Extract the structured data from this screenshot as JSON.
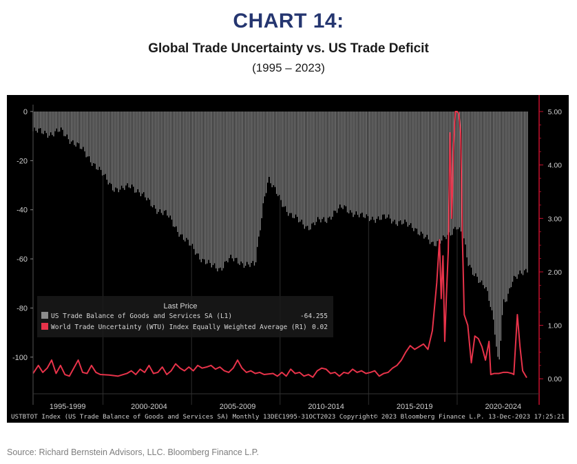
{
  "page": {
    "heading": "CHART 14:",
    "subtitle": "Global Trade Uncertainty vs. US Trade Deficit",
    "period": "(1995 – 2023)",
    "source": "Source: Richard Bernstein Advisors, LLC. Bloomberg Finance L.P."
  },
  "colors": {
    "plot_bg": "#000000",
    "bars": "#8c8c8c",
    "line": "#e8334a",
    "axis_text": "#d0d0d0",
    "right_axis": "#c8102e",
    "grid": "#3a3a3a"
  },
  "chart_data": {
    "type": "bar",
    "footer": "USTBTOT Index (US Trade Balance of Goods and Services SA)  Monthly  13DEC1995-31OCT2023 Copyright© 2023 Bloomberg Finance L.P.  13-Dec-2023  17:25:21",
    "x_range": [
      1995.95,
      2023.83
    ],
    "x_tick_labels": [
      {
        "label": "1995-1999",
        "x": 1997.9
      },
      {
        "label": "2000-2004",
        "x": 2002.5
      },
      {
        "label": "2005-2009",
        "x": 2007.5
      },
      {
        "label": "2010-2014",
        "x": 2012.5
      },
      {
        "label": "2015-2019",
        "x": 2017.5
      },
      {
        "label": "2020-2024",
        "x": 2022.5
      }
    ],
    "x_separators": [
      1999.9,
      2004.9,
      2009.9,
      2014.9,
      2019.9
    ],
    "left_axis": {
      "ticks": [
        0,
        -20,
        -40,
        -60,
        -80,
        -100
      ],
      "range": [
        -111,
        0
      ]
    },
    "right_axis": {
      "ticks": [
        "5.00",
        "4.00",
        "3.00",
        "2.00",
        "1.00",
        "0.00"
      ],
      "range": [
        -0.1,
        5.0
      ]
    },
    "grid": false,
    "legend": {
      "title": "Last Price",
      "position": "bottom-left",
      "entries": [
        {
          "name": "US Trade Balance of Goods and Services SA  (L1)",
          "value": "-64.255",
          "color": "#8c8c8c"
        },
        {
          "name": "World Trade Uncertainty (WTU) Index Equally Weighted Average  (R1)",
          "value": "0.02",
          "color": "#e8334a"
        }
      ]
    },
    "series": [
      {
        "name": "US Trade Balance of Goods and Services SA  (L1)",
        "axis": "left",
        "type": "bar",
        "points": [
          [
            1995.95,
            -8
          ],
          [
            1997.0,
            -9
          ],
          [
            1997.5,
            -8
          ],
          [
            1998.0,
            -11
          ],
          [
            1998.5,
            -14
          ],
          [
            1999.0,
            -18
          ],
          [
            1999.5,
            -22
          ],
          [
            2000.0,
            -27
          ],
          [
            2000.5,
            -31
          ],
          [
            2001.0,
            -32
          ],
          [
            2001.5,
            -30
          ],
          [
            2002.0,
            -33
          ],
          [
            2002.5,
            -37
          ],
          [
            2003.0,
            -40
          ],
          [
            2003.5,
            -42
          ],
          [
            2004.0,
            -47
          ],
          [
            2004.5,
            -52
          ],
          [
            2005.0,
            -56
          ],
          [
            2005.5,
            -60
          ],
          [
            2006.0,
            -63
          ],
          [
            2006.5,
            -64
          ],
          [
            2007.0,
            -60
          ],
          [
            2007.5,
            -61
          ],
          [
            2008.0,
            -62
          ],
          [
            2008.5,
            -63
          ],
          [
            2009.0,
            -35
          ],
          [
            2009.25,
            -27
          ],
          [
            2009.5,
            -31
          ],
          [
            2010.0,
            -37
          ],
          [
            2010.5,
            -42
          ],
          [
            2011.0,
            -45
          ],
          [
            2011.5,
            -47
          ],
          [
            2012.0,
            -45
          ],
          [
            2012.5,
            -44
          ],
          [
            2013.0,
            -41
          ],
          [
            2013.5,
            -39
          ],
          [
            2014.0,
            -41
          ],
          [
            2014.5,
            -43
          ],
          [
            2015.0,
            -43
          ],
          [
            2015.5,
            -44
          ],
          [
            2016.0,
            -43
          ],
          [
            2016.5,
            -45
          ],
          [
            2017.0,
            -46
          ],
          [
            2017.5,
            -47
          ],
          [
            2018.0,
            -51
          ],
          [
            2018.5,
            -54
          ],
          [
            2019.0,
            -52
          ],
          [
            2019.5,
            -51
          ],
          [
            2019.9,
            -46
          ],
          [
            2020.25,
            -50
          ],
          [
            2020.5,
            -62
          ],
          [
            2020.75,
            -66
          ],
          [
            2021.0,
            -67
          ],
          [
            2021.5,
            -71
          ],
          [
            2021.8,
            -80
          ],
          [
            2022.0,
            -88
          ],
          [
            2022.25,
            -104
          ],
          [
            2022.5,
            -77
          ],
          [
            2022.75,
            -76
          ],
          [
            2023.0,
            -70
          ],
          [
            2023.5,
            -65
          ],
          [
            2023.83,
            -64.255
          ]
        ]
      },
      {
        "name": "World Trade Uncertainty (WTU) Index Equally Weighted Average  (R1)",
        "axis": "right",
        "type": "line",
        "points": [
          [
            1995.95,
            0.1
          ],
          [
            1996.25,
            0.25
          ],
          [
            1996.5,
            0.12
          ],
          [
            1996.75,
            0.2
          ],
          [
            1997.0,
            0.35
          ],
          [
            1997.25,
            0.1
          ],
          [
            1997.5,
            0.25
          ],
          [
            1997.75,
            0.08
          ],
          [
            1998.0,
            0.05
          ],
          [
            1998.25,
            0.2
          ],
          [
            1998.5,
            0.35
          ],
          [
            1998.75,
            0.12
          ],
          [
            1999.0,
            0.1
          ],
          [
            1999.25,
            0.25
          ],
          [
            1999.5,
            0.12
          ],
          [
            1999.75,
            0.08
          ],
          [
            2000.25,
            0.07
          ],
          [
            2000.75,
            0.05
          ],
          [
            2001.25,
            0.1
          ],
          [
            2001.5,
            0.15
          ],
          [
            2001.75,
            0.08
          ],
          [
            2002.0,
            0.18
          ],
          [
            2002.25,
            0.12
          ],
          [
            2002.5,
            0.25
          ],
          [
            2002.75,
            0.1
          ],
          [
            2003.0,
            0.12
          ],
          [
            2003.25,
            0.22
          ],
          [
            2003.5,
            0.08
          ],
          [
            2003.75,
            0.15
          ],
          [
            2004.0,
            0.28
          ],
          [
            2004.25,
            0.2
          ],
          [
            2004.5,
            0.15
          ],
          [
            2004.75,
            0.22
          ],
          [
            2005.0,
            0.15
          ],
          [
            2005.25,
            0.25
          ],
          [
            2005.5,
            0.2
          ],
          [
            2005.75,
            0.22
          ],
          [
            2006.0,
            0.25
          ],
          [
            2006.25,
            0.18
          ],
          [
            2006.5,
            0.22
          ],
          [
            2006.75,
            0.15
          ],
          [
            2007.0,
            0.12
          ],
          [
            2007.25,
            0.2
          ],
          [
            2007.5,
            0.35
          ],
          [
            2007.75,
            0.2
          ],
          [
            2008.0,
            0.12
          ],
          [
            2008.25,
            0.15
          ],
          [
            2008.5,
            0.1
          ],
          [
            2008.75,
            0.12
          ],
          [
            2009.0,
            0.08
          ],
          [
            2009.5,
            0.1
          ],
          [
            2009.75,
            0.05
          ],
          [
            2010.0,
            0.12
          ],
          [
            2010.25,
            0.05
          ],
          [
            2010.5,
            0.18
          ],
          [
            2010.75,
            0.1
          ],
          [
            2011.0,
            0.12
          ],
          [
            2011.25,
            0.05
          ],
          [
            2011.5,
            0.08
          ],
          [
            2011.75,
            0.03
          ],
          [
            2012.0,
            0.15
          ],
          [
            2012.25,
            0.2
          ],
          [
            2012.5,
            0.18
          ],
          [
            2012.75,
            0.1
          ],
          [
            2013.0,
            0.12
          ],
          [
            2013.25,
            0.05
          ],
          [
            2013.5,
            0.12
          ],
          [
            2013.75,
            0.1
          ],
          [
            2014.0,
            0.18
          ],
          [
            2014.25,
            0.12
          ],
          [
            2014.5,
            0.15
          ],
          [
            2014.75,
            0.1
          ],
          [
            2015.0,
            0.12
          ],
          [
            2015.25,
            0.15
          ],
          [
            2015.5,
            0.05
          ],
          [
            2015.75,
            0.1
          ],
          [
            2016.0,
            0.12
          ],
          [
            2016.25,
            0.2
          ],
          [
            2016.5,
            0.25
          ],
          [
            2016.75,
            0.35
          ],
          [
            2017.0,
            0.5
          ],
          [
            2017.25,
            0.62
          ],
          [
            2017.5,
            0.55
          ],
          [
            2017.75,
            0.6
          ],
          [
            2018.0,
            0.65
          ],
          [
            2018.25,
            0.55
          ],
          [
            2018.5,
            0.9
          ],
          [
            2018.75,
            1.8
          ],
          [
            2018.9,
            2.6
          ],
          [
            2019.0,
            1.5
          ],
          [
            2019.1,
            2.3
          ],
          [
            2019.2,
            0.7
          ],
          [
            2019.3,
            1.6
          ],
          [
            2019.4,
            2.4
          ],
          [
            2019.5,
            4.6
          ],
          [
            2019.6,
            3.0
          ],
          [
            2019.7,
            4.4
          ],
          [
            2019.8,
            5.0
          ],
          [
            2019.9,
            5.0
          ],
          [
            2020.0,
            4.95
          ],
          [
            2020.1,
            4.6
          ],
          [
            2020.2,
            2.6
          ],
          [
            2020.3,
            1.2
          ],
          [
            2020.5,
            1.0
          ],
          [
            2020.7,
            0.3
          ],
          [
            2020.9,
            0.8
          ],
          [
            2021.1,
            0.75
          ],
          [
            2021.3,
            0.6
          ],
          [
            2021.5,
            0.35
          ],
          [
            2021.7,
            0.7
          ],
          [
            2021.8,
            0.08
          ],
          [
            2022.0,
            0.1
          ],
          [
            2022.25,
            0.1
          ],
          [
            2022.5,
            0.12
          ],
          [
            2022.75,
            0.12
          ],
          [
            2023.0,
            0.1
          ],
          [
            2023.1,
            0.08
          ],
          [
            2023.3,
            1.2
          ],
          [
            2023.45,
            0.6
          ],
          [
            2023.6,
            0.15
          ],
          [
            2023.83,
            0.02
          ]
        ]
      }
    ]
  }
}
